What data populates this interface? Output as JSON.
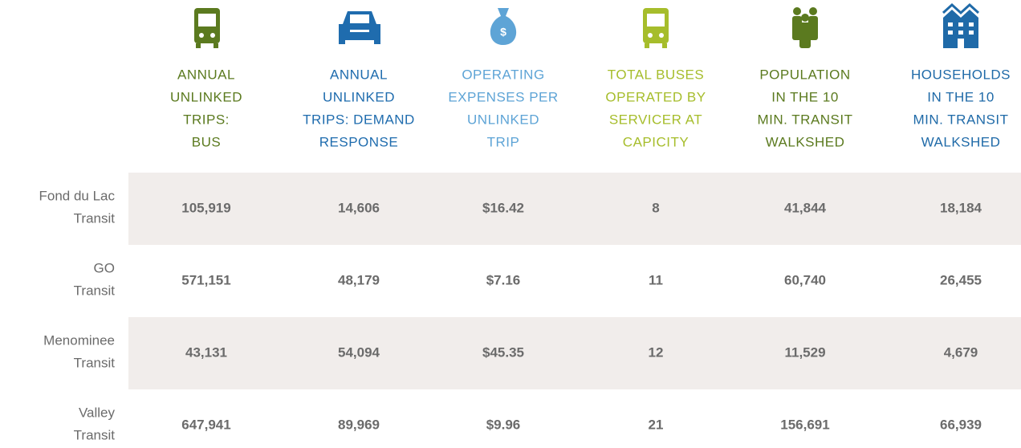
{
  "table": {
    "columns": [
      {
        "label": [
          "ANNUAL",
          "UNLINKED",
          "TRIPS:",
          "BUS"
        ],
        "color": "#5b7a1f"
      },
      {
        "label": [
          "ANNUAL",
          "UNLINKED",
          "TRIPS: DEMAND",
          "RESPONSE"
        ],
        "color": "#1f6cae"
      },
      {
        "label": [
          "OPERATING",
          "EXPENSES PER",
          "UNLINKED",
          "TRIP"
        ],
        "color": "#5ea4d6"
      },
      {
        "label": [
          "TOTAL BUSES",
          "OPERATED BY",
          "SERVICER AT",
          "CAPICITY"
        ],
        "color": "#a6bd2b"
      },
      {
        "label": [
          "POPULATION",
          "IN THE 10",
          "MIN. TRANSIT",
          "WALKSHED"
        ],
        "color": "#5b7a1f"
      },
      {
        "label": [
          "HOUSEHOLDS",
          "IN THE 10",
          "MIN. TRANSIT",
          "WALKSHED"
        ],
        "color": "#1f6aa8"
      }
    ],
    "rows": [
      {
        "label": [
          "Fond du Lac",
          "Transit"
        ],
        "cells": [
          "105,919",
          "14,606",
          "$16.42",
          "8",
          "41,844",
          "18,184"
        ]
      },
      {
        "label": [
          "GO",
          "Transit"
        ],
        "cells": [
          "571,151",
          "48,179",
          "$7.16",
          "11",
          "60,740",
          "26,455"
        ]
      },
      {
        "label": [
          "Menominee",
          "Transit"
        ],
        "cells": [
          "43,131",
          "54,094",
          "$45.35",
          "12",
          "11,529",
          "4,679"
        ]
      },
      {
        "label": [
          "Valley",
          "Transit"
        ],
        "cells": [
          "647,941",
          "89,969",
          "$9.96",
          "21",
          "156,691",
          "66,939"
        ]
      }
    ]
  }
}
